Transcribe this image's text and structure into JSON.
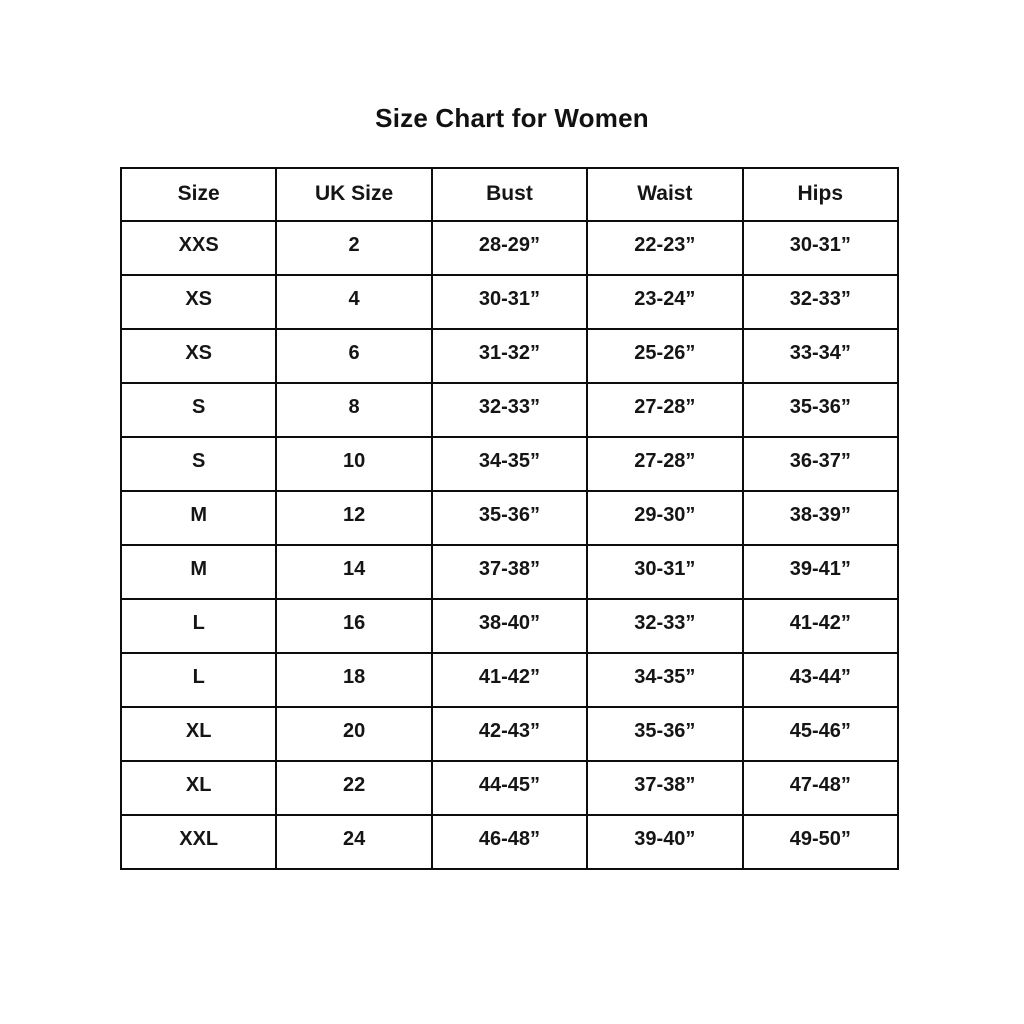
{
  "title": "Size Chart for Women",
  "chart_data": {
    "type": "table",
    "title": "Size Chart for Women",
    "columns": [
      "Size",
      "UK Size",
      "Bust",
      "Waist",
      "Hips"
    ],
    "rows": [
      [
        "XXS",
        "2",
        "28-29”",
        "22-23”",
        "30-31”"
      ],
      [
        "XS",
        "4",
        "30-31”",
        "23-24”",
        "32-33”"
      ],
      [
        "XS",
        "6",
        "31-32”",
        "25-26”",
        "33-34”"
      ],
      [
        "S",
        "8",
        "32-33”",
        "27-28”",
        "35-36”"
      ],
      [
        "S",
        "10",
        "34-35”",
        "27-28”",
        "36-37”"
      ],
      [
        "M",
        "12",
        "35-36”",
        "29-30”",
        "38-39”"
      ],
      [
        "M",
        "14",
        "37-38”",
        "30-31”",
        "39-41”"
      ],
      [
        "L",
        "16",
        "38-40”",
        "32-33”",
        "41-42”"
      ],
      [
        "L",
        "18",
        "41-42”",
        "34-35”",
        "43-44”"
      ],
      [
        "XL",
        "20",
        "42-43”",
        "35-36”",
        "45-46”"
      ],
      [
        "XL",
        "22",
        "44-45”",
        "37-38”",
        "47-48”"
      ],
      [
        "XXL",
        "24",
        "46-48”",
        "39-40”",
        "49-50”"
      ]
    ]
  }
}
